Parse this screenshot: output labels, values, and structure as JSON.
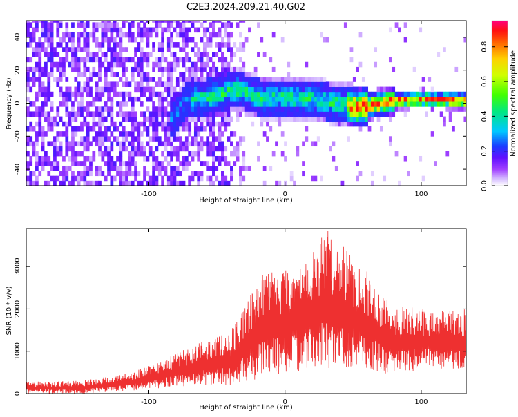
{
  "title": "C2E3.2024.209.21.40.G02",
  "chart_data": [
    {
      "type": "heatmap",
      "xlabel": "Height of straight line (km)",
      "ylabel": "Frequency (Hz)",
      "xlim": [
        -190,
        133
      ],
      "ylim": [
        -50,
        50
      ],
      "xticks": [
        -100,
        0,
        100
      ],
      "yticks": [
        -40,
        -20,
        0,
        20,
        40
      ],
      "colorbar": {
        "label": "Normalized spectral amplitude",
        "range": [
          0,
          0.95
        ],
        "ticks": [
          0.0,
          0.2,
          0.4,
          0.6,
          0.8
        ]
      },
      "ridge": [
        {
          "x": -82,
          "y": -10
        },
        {
          "x": -75,
          "y": 0
        },
        {
          "x": -60,
          "y": 2
        },
        {
          "x": -45,
          "y": 5
        },
        {
          "x": -35,
          "y": 7
        },
        {
          "x": -20,
          "y": 2
        },
        {
          "x": 0,
          "y": 2
        },
        {
          "x": 20,
          "y": 1
        },
        {
          "x": 40,
          "y": -2
        },
        {
          "x": 55,
          "y": -4
        },
        {
          "x": 65,
          "y": -2
        },
        {
          "x": 80,
          "y": 0
        },
        {
          "x": 100,
          "y": 1
        },
        {
          "x": 133,
          "y": 0
        }
      ]
    },
    {
      "type": "line",
      "color": "#ee3030",
      "xlabel": "Height of straight line (km)",
      "ylabel": "SNR (10 * v/v)",
      "xlim": [
        -190,
        133
      ],
      "ylim": [
        0,
        3900
      ],
      "xticks": [
        -100,
        0,
        100
      ],
      "yticks": [
        0,
        1000,
        2000,
        3000
      ],
      "envelope": [
        {
          "x": -190,
          "lo": 0,
          "hi": 280
        },
        {
          "x": -150,
          "lo": 0,
          "hi": 300
        },
        {
          "x": -120,
          "lo": 50,
          "hi": 450
        },
        {
          "x": -100,
          "lo": 100,
          "hi": 650
        },
        {
          "x": -80,
          "lo": 150,
          "hi": 950
        },
        {
          "x": -60,
          "lo": 200,
          "hi": 1250
        },
        {
          "x": -40,
          "lo": 200,
          "hi": 1500
        },
        {
          "x": -30,
          "lo": 250,
          "hi": 2000
        },
        {
          "x": -20,
          "lo": 350,
          "hi": 2700
        },
        {
          "x": -10,
          "lo": 450,
          "hi": 3000
        },
        {
          "x": 0,
          "lo": 450,
          "hi": 3000
        },
        {
          "x": 15,
          "lo": 550,
          "hi": 3100
        },
        {
          "x": 30,
          "lo": 600,
          "hi": 3900
        },
        {
          "x": 45,
          "lo": 600,
          "hi": 3400
        },
        {
          "x": 60,
          "lo": 550,
          "hi": 2900
        },
        {
          "x": 70,
          "lo": 450,
          "hi": 2500
        },
        {
          "x": 80,
          "lo": 500,
          "hi": 2100
        },
        {
          "x": 100,
          "lo": 550,
          "hi": 2000
        },
        {
          "x": 120,
          "lo": 550,
          "hi": 1950
        },
        {
          "x": 133,
          "lo": 550,
          "hi": 2000
        }
      ]
    }
  ]
}
